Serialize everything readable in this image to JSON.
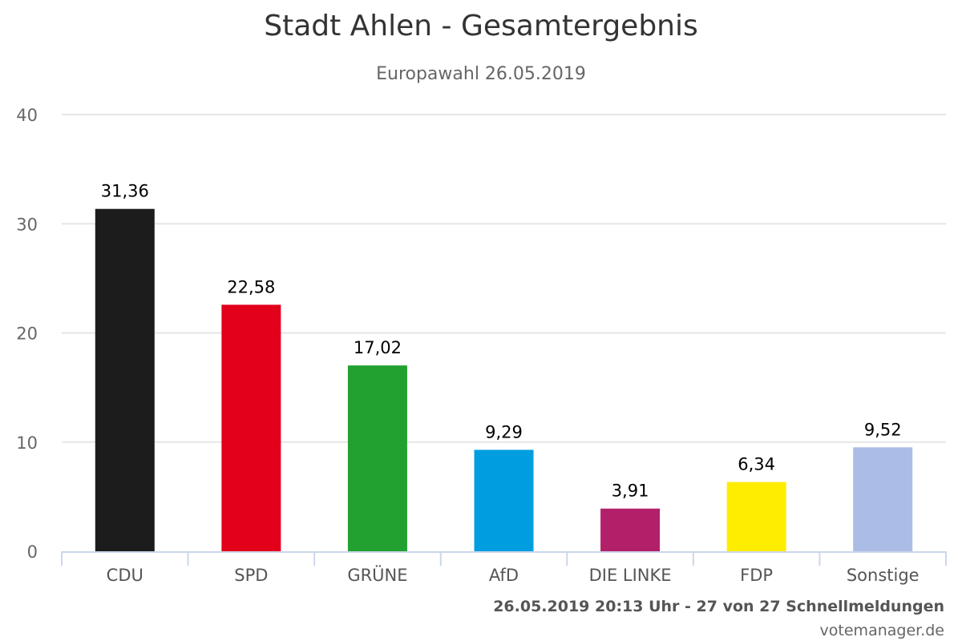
{
  "chart_data": {
    "type": "bar",
    "title": "Stadt Ahlen - Gesamtergebnis",
    "subtitle": "Europawahl 26.05.2019",
    "xlabel": "",
    "ylabel": "",
    "ylim": [
      0,
      40
    ],
    "yticks": [
      "0",
      "10",
      "20",
      "30",
      "40"
    ],
    "categories": [
      "CDU",
      "SPD",
      "GRÜNE",
      "AfD",
      "DIE LINKE",
      "FDP",
      "Sonstige"
    ],
    "values": [
      31.36,
      22.58,
      17.02,
      9.29,
      3.91,
      6.34,
      9.52
    ],
    "value_labels": [
      "31,36",
      "22,58",
      "17,02",
      "9,29",
      "3,91",
      "6,34",
      "9,52"
    ],
    "colors": [
      "#1c1c1c",
      "#e2001a",
      "#22a130",
      "#009ee0",
      "#b3206a",
      "#ffed00",
      "#abbde6"
    ],
    "grid": true,
    "legend": "none"
  },
  "footer": {
    "info": "26.05.2019 20:13 Uhr - 27 von 27 Schnellmeldungen",
    "credit": "votemanager.de"
  }
}
